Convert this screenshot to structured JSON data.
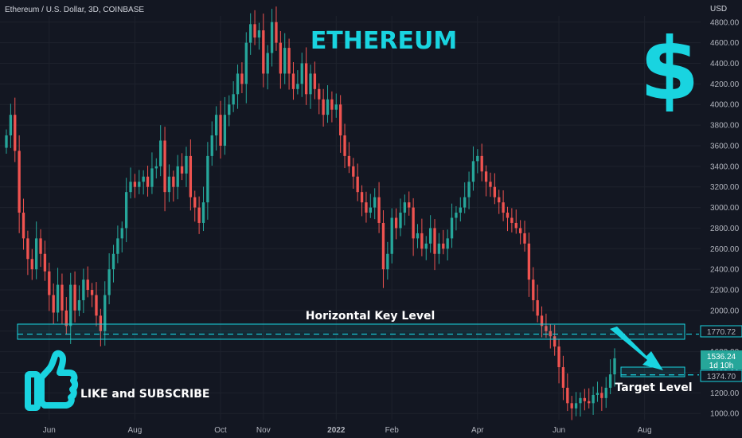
{
  "header": {
    "symbol_line": "Ethereum / U.S. Dollar, 3D, COINBASE",
    "currency": "USD"
  },
  "title": "ETHEREUM",
  "dollar_symbol": "$",
  "annotations": {
    "key_level_label": "Horizontal Key Level",
    "target_label": "Target Level",
    "cta_label": "LIKE and SUBSCRIBE"
  },
  "price_badges": {
    "key_level": "1770.72",
    "last_price": "1536.24",
    "countdown": "1d 10h",
    "target": "1374.70"
  },
  "colors": {
    "background": "#131722",
    "up": "#26a69a",
    "down": "#ef5350",
    "accent": "#19d4e0",
    "grid": "#1e222d",
    "text": "#b2b5be"
  },
  "icons": [
    "thumbs-up-icon",
    "dollar-icon",
    "arrow-icon"
  ],
  "chart_data": {
    "type": "candlestick",
    "title": "",
    "y_axis": {
      "ticks": [
        1000,
        1200,
        1400,
        1600,
        1800,
        2000,
        2200,
        2400,
        2600,
        2800,
        3000,
        3200,
        3400,
        3600,
        3800,
        4000,
        4200,
        4400,
        4600,
        4800
      ],
      "tick_labels": [
        "1000.00",
        "1200.00",
        "1400.00",
        "1600.00",
        "1800.00",
        "2000.00",
        "2200.00",
        "2400.00",
        "2600.00",
        "2800.00",
        "3000.00",
        "3200.00",
        "3400.00",
        "3600.00",
        "3800.00",
        "4000.00",
        "4200.00",
        "4400.00",
        "4600.00",
        "4800.00"
      ],
      "ylim": [
        940,
        4860
      ],
      "unit": "USD"
    },
    "x_axis": {
      "tick_labels": [
        "Jun",
        "Aug",
        "Oct",
        "Nov",
        "2022",
        "Feb",
        "Apr",
        "Jun",
        "Aug"
      ],
      "tick_candle_index": [
        10,
        30,
        50,
        60,
        77,
        90,
        110,
        129,
        149
      ]
    },
    "levels": {
      "horizontal_key_level": 1770.72,
      "target_level": 1374.7,
      "last_price": 1536.24
    },
    "close_series": [
      3700,
      3900,
      3550,
      2950,
      2700,
      2500,
      2400,
      2700,
      2550,
      2380,
      2150,
      1980,
      2250,
      2000,
      1850,
      2250,
      2000,
      2100,
      2300,
      2200,
      2150,
      1950,
      1800,
      2150,
      2400,
      2550,
      2700,
      2800,
      3150,
      3250,
      3200,
      3250,
      3300,
      3200,
      3380,
      3400,
      3650,
      3150,
      3300,
      3200,
      3400,
      3330,
      3500,
      3100,
      3000,
      2850,
      3050,
      3500,
      3700,
      3900,
      3600,
      3900,
      4000,
      4100,
      4300,
      4200,
      4600,
      4780,
      4650,
      4720,
      4300,
      4500,
      4800,
      4600,
      4300,
      4550,
      4300,
      4150,
      4200,
      4400,
      4100,
      4300,
      4150,
      4050,
      3900,
      4050,
      3950,
      4000,
      3700,
      3500,
      3400,
      3300,
      3150,
      3050,
      2950,
      3000,
      3100,
      2850,
      2400,
      2550,
      2900,
      2800,
      2950,
      3050,
      3000,
      2700,
      2750,
      2600,
      2650,
      2800,
      2550,
      2650,
      2600,
      2700,
      2900,
      2950,
      3000,
      3100,
      3250,
      3450,
      3500,
      3350,
      3250,
      3200,
      3100,
      3050,
      2950,
      2900,
      2850,
      2800,
      2750,
      2650,
      2300,
      2100,
      1950,
      1850,
      1800,
      1750,
      1650,
      1450,
      1250,
      1100,
      1050,
      1100,
      1150,
      1120,
      1100,
      1180,
      1200,
      1150,
      1250,
      1380,
      1536
    ]
  }
}
